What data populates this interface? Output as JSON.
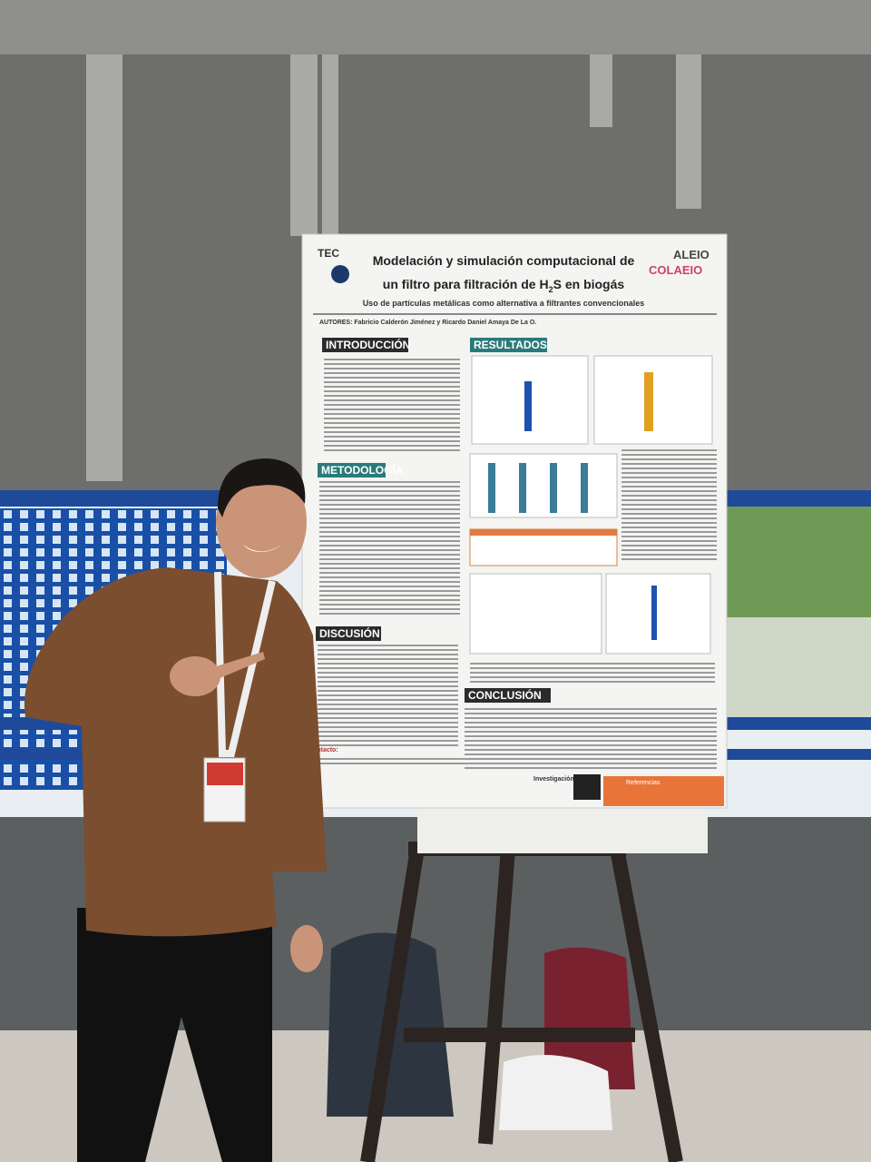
{
  "poster": {
    "logos": {
      "left": "TEC",
      "right": "ALEIO",
      "right2": "COLAEIO"
    },
    "title": {
      "line1": "Modelación y simulación computacional de",
      "line2_before": "un filtro para filtración de H",
      "line2_sub": "2",
      "line2_after": "S en biogás"
    },
    "subtitle": "Uso de partículas metálicas como alternativa a filtrantes convencionales",
    "authors": "AUTORES: Fabricio Calderón Jiménez y Ricardo Daniel Amaya De La O.",
    "sections": {
      "intro": "INTRODUCCIÓN",
      "method": "METODOLOGÍA",
      "discussion": "DISCUSIÓN",
      "results": "RESULTADOS",
      "conclusion": "CONCLUSIÓN"
    },
    "footer": {
      "contact": "Contacto:",
      "research": "Investigación final",
      "references": "Referencias"
    }
  }
}
